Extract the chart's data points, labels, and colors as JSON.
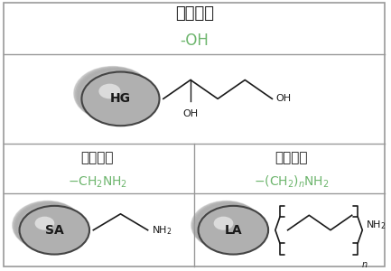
{
  "green_color": "#6db56d",
  "black_color": "#1a1a1a",
  "border_color": "#999999",
  "bead_face": "#b0b0b0",
  "bead_edge": "#444444",
  "background": "#ffffff",
  "row1_label": "功能基团",
  "row1_formula": "-OH",
  "row2_left_label": "功能基团",
  "row2_left_formula": "$-$CH$_2$NH$_2$",
  "row2_right_label": "功能基团",
  "row2_right_formula": "$-$(CH$_2$)$_n$NH$_2$",
  "bead_hg": "HG",
  "bead_sa": "SA",
  "bead_la": "LA",
  "grid_rows": [
    0.0,
    0.385,
    0.62,
    1.0
  ],
  "grid_vcol": 0.5
}
